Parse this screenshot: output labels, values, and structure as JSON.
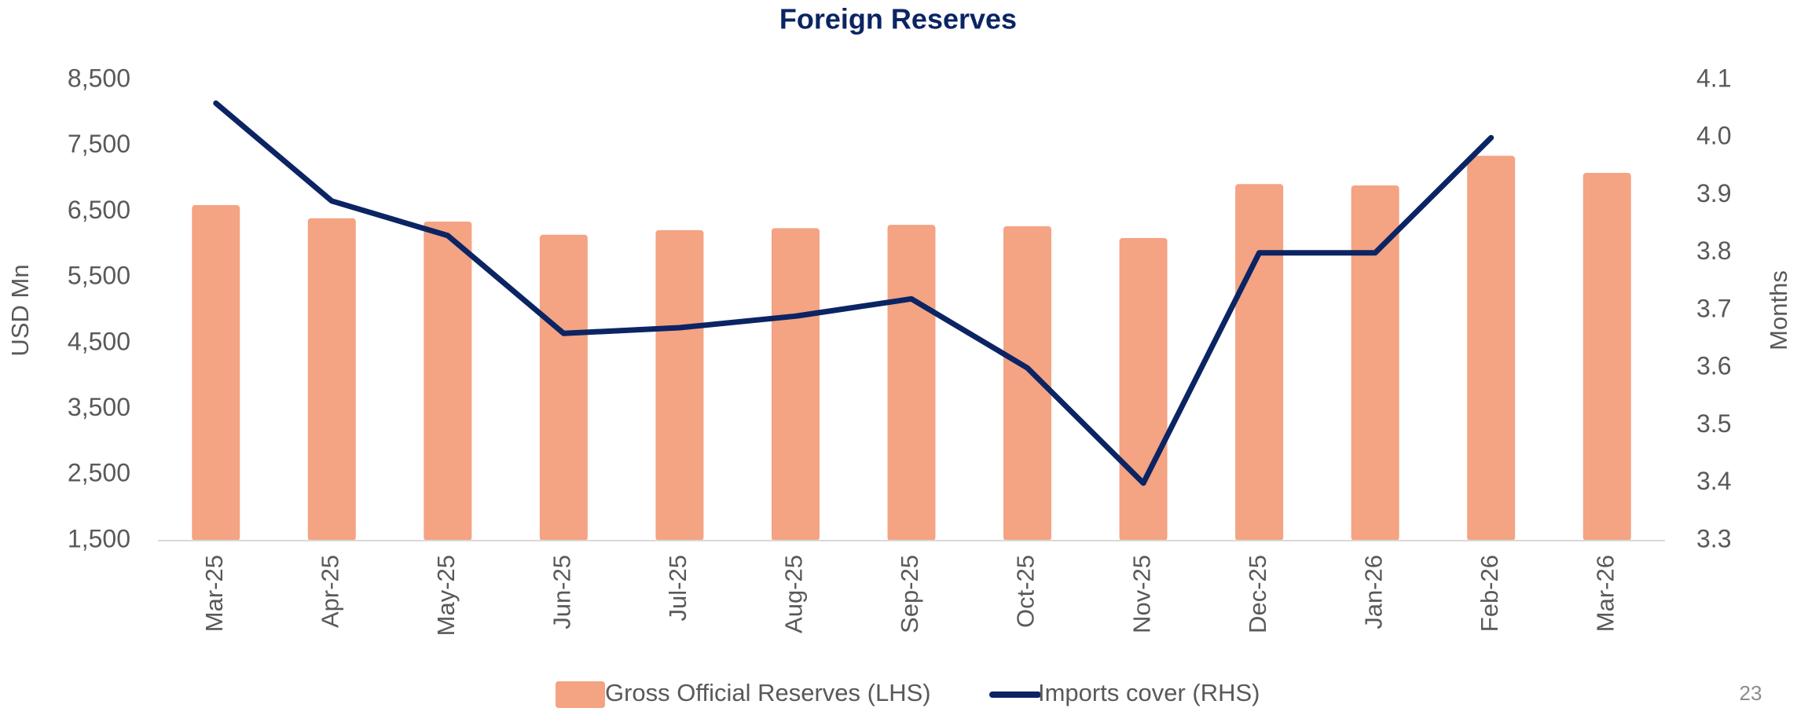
{
  "chart_data": {
    "type": "bar_line",
    "title": "Foreign Reserves",
    "y_label": "USD Mn",
    "y2_label": "Months",
    "page_number": "23",
    "categories": [
      "Mar-25",
      "Apr-25",
      "May-25",
      "Jun-25",
      "Jul-25",
      "Aug-25",
      "Sep-25",
      "Oct-25",
      "Nov-25",
      "Dec-25",
      "Jan-26",
      "Feb-26",
      "Mar-26"
    ],
    "series": [
      {
        "name": "Gross Official Reserves (LHS)",
        "type": "bar",
        "color": "#f4a383",
        "axis": "y",
        "values": [
          6600,
          6400,
          6350,
          6150,
          6220,
          6250,
          6300,
          6280,
          6100,
          6920,
          6900,
          7350,
          7090
        ]
      },
      {
        "name": "Imports cover (RHS)",
        "type": "line",
        "color": "#0b2463",
        "axis": "y2",
        "values": [
          4.06,
          3.89,
          3.83,
          3.66,
          3.67,
          3.69,
          3.72,
          3.6,
          3.4,
          3.8,
          3.8,
          4.0,
          null
        ]
      }
    ],
    "ylim": [
      1500,
      8500
    ],
    "yticks": [
      {
        "value": 1500,
        "label": "1,500"
      },
      {
        "value": 2500,
        "label": "2,500"
      },
      {
        "value": 3500,
        "label": "3,500"
      },
      {
        "value": 4500,
        "label": "4,500"
      },
      {
        "value": 5500,
        "label": "5,500"
      },
      {
        "value": 6500,
        "label": "6,500"
      },
      {
        "value": 7500,
        "label": "7,500"
      },
      {
        "value": 8500,
        "label": "8,500"
      }
    ],
    "y2lim": [
      3.3,
      4.1
    ],
    "y2ticks": [
      3.3,
      3.4,
      3.5,
      3.6,
      3.7,
      3.8,
      3.9,
      {
        "value": 4.0,
        "label": "4.0"
      },
      4.1
    ],
    "grid": false,
    "legend": "bottom"
  }
}
